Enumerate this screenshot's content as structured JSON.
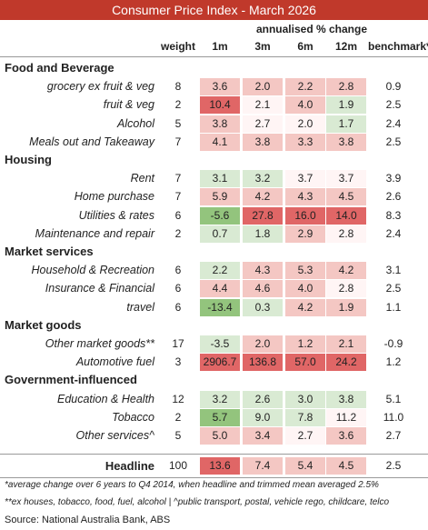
{
  "chart_data": {
    "type": "table",
    "title": "Consumer Price Index - March 2026",
    "group_header": "annualised % change",
    "columns": [
      "weight",
      "1m",
      "3m",
      "6m",
      "12m",
      "benchmark*"
    ],
    "sections": [
      {
        "name": "Food and Beverage",
        "rows": [
          {
            "label": "grocery ex fruit & veg",
            "weight": "8",
            "values": [
              "3.6",
              "2.0",
              "2.2",
              "2.8"
            ],
            "benchmark": "0.9"
          },
          {
            "label": "fruit & veg",
            "weight": "2",
            "values": [
              "10.4",
              "2.1",
              "4.0",
              "1.9"
            ],
            "benchmark": "2.5"
          },
          {
            "label": "Alcohol",
            "weight": "5",
            "values": [
              "3.8",
              "2.7",
              "2.0",
              "1.7"
            ],
            "benchmark": "2.4"
          },
          {
            "label": "Meals out and Takeaway",
            "weight": "7",
            "values": [
              "4.1",
              "3.8",
              "3.3",
              "3.8"
            ],
            "benchmark": "2.5"
          }
        ]
      },
      {
        "name": "Housing",
        "rows": [
          {
            "label": "Rent",
            "weight": "7",
            "values": [
              "3.1",
              "3.2",
              "3.7",
              "3.7"
            ],
            "benchmark": "3.9"
          },
          {
            "label": "Home purchase",
            "weight": "7",
            "values": [
              "5.9",
              "4.2",
              "4.3",
              "4.5"
            ],
            "benchmark": "2.6"
          },
          {
            "label": "Utilities & rates",
            "weight": "6",
            "values": [
              "-5.6",
              "27.8",
              "16.0",
              "14.0"
            ],
            "benchmark": "8.3"
          },
          {
            "label": "Maintenance and repair",
            "weight": "2",
            "values": [
              "0.7",
              "1.8",
              "2.9",
              "2.8"
            ],
            "benchmark": "2.4"
          }
        ]
      },
      {
        "name": "Market services",
        "rows": [
          {
            "label": "Household & Recreation",
            "weight": "6",
            "values": [
              "2.2",
              "4.3",
              "5.3",
              "4.2"
            ],
            "benchmark": "3.1"
          },
          {
            "label": "Insurance & Financial",
            "weight": "6",
            "values": [
              "4.4",
              "4.6",
              "4.0",
              "2.8"
            ],
            "benchmark": "2.5"
          },
          {
            "label": "travel",
            "weight": "6",
            "values": [
              "-13.4",
              "0.3",
              "4.2",
              "1.9"
            ],
            "benchmark": "1.1"
          }
        ]
      },
      {
        "name": "Market goods",
        "rows": [
          {
            "label": "Other market goods**",
            "weight": "17",
            "values": [
              "-3.5",
              "2.0",
              "1.2",
              "2.1"
            ],
            "benchmark": "-0.9"
          },
          {
            "label": "Automotive fuel",
            "weight": "3",
            "values": [
              "2906.7",
              "136.8",
              "57.0",
              "24.2"
            ],
            "benchmark": "1.2"
          }
        ]
      },
      {
        "name": "Government-influenced",
        "rows": [
          {
            "label": "Education & Health",
            "weight": "12",
            "values": [
              "3.2",
              "2.6",
              "3.0",
              "3.8"
            ],
            "benchmark": "5.1"
          },
          {
            "label": "Tobacco",
            "weight": "2",
            "values": [
              "5.7",
              "9.0",
              "7.8",
              "11.2"
            ],
            "benchmark": "11.0"
          },
          {
            "label": "Other services^",
            "weight": "5",
            "values": [
              "5.0",
              "3.4",
              "2.7",
              "3.6"
            ],
            "benchmark": "2.7"
          }
        ]
      }
    ],
    "headline": {
      "label": "Headline",
      "weight": "100",
      "values": [
        "13.6",
        "7.4",
        "5.4",
        "4.5"
      ],
      "benchmark": "2.5"
    },
    "footnotes": [
      "*average change over 6 years to Q4 2014, when headline and trimmed mean averaged 2.5%",
      "**ex houses, tobacco, food, fuel, alcohol | ^public transport, postal, vehicle rego, childcare, telco"
    ],
    "source": "Source: National Australia Bank, ABS",
    "colors": {
      "title_bar": "#c0392b",
      "hot": "#e06666",
      "warm": "#f4c7c3",
      "cool": "#d9ead3",
      "cold": "#93c47d"
    }
  }
}
